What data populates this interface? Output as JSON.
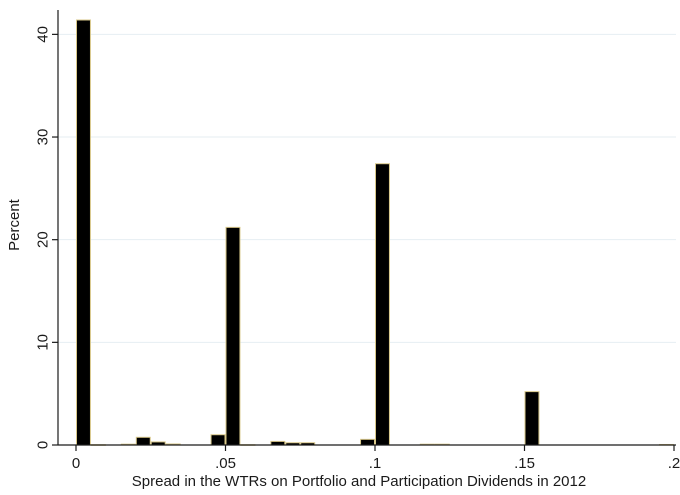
{
  "chart_data": {
    "type": "bar",
    "xlabel": "Spread in the WTRs on Portfolio and Participation Dividends in 2012",
    "ylabel": "Percent",
    "xlim": [
      0,
      0.2
    ],
    "ylim": [
      0,
      42
    ],
    "x_ticks": [
      {
        "value": 0,
        "label": "0"
      },
      {
        "value": 0.05,
        "label": ".05"
      },
      {
        "value": 0.1,
        "label": ".1"
      },
      {
        "value": 0.15,
        "label": ".15"
      },
      {
        "value": 0.2,
        "label": ".2"
      }
    ],
    "y_ticks": [
      {
        "value": 0,
        "label": "0"
      },
      {
        "value": 10,
        "label": "10"
      },
      {
        "value": 20,
        "label": "20"
      },
      {
        "value": 30,
        "label": "30"
      },
      {
        "value": 40,
        "label": "40"
      }
    ],
    "grid": true,
    "bars": [
      {
        "x": 0.0025,
        "value": 41.4
      },
      {
        "x": 0.0075,
        "value": 0.03
      },
      {
        "x": 0.0175,
        "value": 0.08
      },
      {
        "x": 0.0225,
        "value": 0.75
      },
      {
        "x": 0.0275,
        "value": 0.3
      },
      {
        "x": 0.0325,
        "value": 0.1
      },
      {
        "x": 0.0475,
        "value": 1.0
      },
      {
        "x": 0.0525,
        "value": 21.2
      },
      {
        "x": 0.0575,
        "value": 0.03
      },
      {
        "x": 0.0675,
        "value": 0.35
      },
      {
        "x": 0.0725,
        "value": 0.22
      },
      {
        "x": 0.0775,
        "value": 0.22
      },
      {
        "x": 0.0975,
        "value": 0.55
      },
      {
        "x": 0.1025,
        "value": 27.4
      },
      {
        "x": 0.1175,
        "value": 0.08
      },
      {
        "x": 0.1225,
        "value": 0.08
      },
      {
        "x": 0.1525,
        "value": 5.2
      },
      {
        "x": 0.1975,
        "value": 0.05
      }
    ],
    "colors": {
      "bar_fill": "#000000",
      "bar_outline": "#d8c78a",
      "gridline": "#e6eef2",
      "axis": "#1a1a1a",
      "background": "#ffffff"
    }
  }
}
